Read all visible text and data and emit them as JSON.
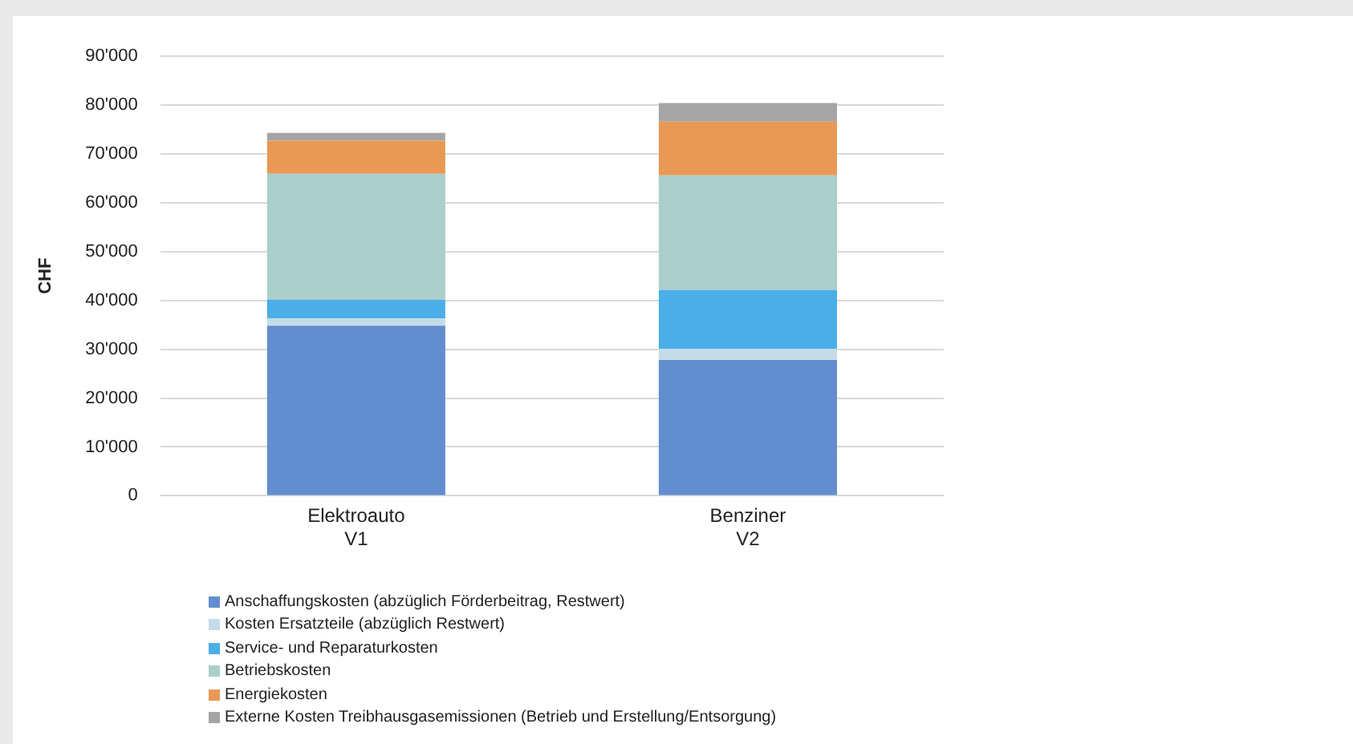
{
  "chart_data": {
    "type": "bar",
    "stacked": true,
    "ylabel": "CHF",
    "categories": [
      "Elektroauto\nV1",
      "Benziner\nV2"
    ],
    "ylim": [
      0,
      90000
    ],
    "yticks": [
      {
        "value": 0,
        "label": "0"
      },
      {
        "value": 10000,
        "label": "10'000"
      },
      {
        "value": 20000,
        "label": "20'000"
      },
      {
        "value": 30000,
        "label": "30'000"
      },
      {
        "value": 40000,
        "label": "40'000"
      },
      {
        "value": 50000,
        "label": "50'000"
      },
      {
        "value": 60000,
        "label": "60'000"
      },
      {
        "value": 70000,
        "label": "70'000"
      },
      {
        "value": 80000,
        "label": "80'000"
      },
      {
        "value": 90000,
        "label": "90'000"
      }
    ],
    "grid": "y",
    "legend": "bottom",
    "series": [
      {
        "name": "Anschaffungskosten (abzüglich Förderbeitrag, Restwert)",
        "color": "#628dcf",
        "values": [
          34800,
          27800
        ]
      },
      {
        "name": "Kosten Ersatzteile (abzüglich Restwert)",
        "color": "#c5dbe8",
        "values": [
          1500,
          2300
        ]
      },
      {
        "name": "Service- und Reparaturkosten",
        "color": "#4baee8",
        "values": [
          3800,
          12000
        ]
      },
      {
        "name": "Betriebskosten",
        "color": "#aacfcb",
        "values": [
          25800,
          23500
        ]
      },
      {
        "name": "Energiekosten",
        "color": "#e99855",
        "values": [
          6800,
          11000
        ]
      },
      {
        "name": "Externe Kosten Treibhausgasemissionen (Betrieb und Erstellung/Entsorgung)",
        "color": "#a5a5a5",
        "values": [
          1600,
          3800
        ]
      }
    ]
  }
}
